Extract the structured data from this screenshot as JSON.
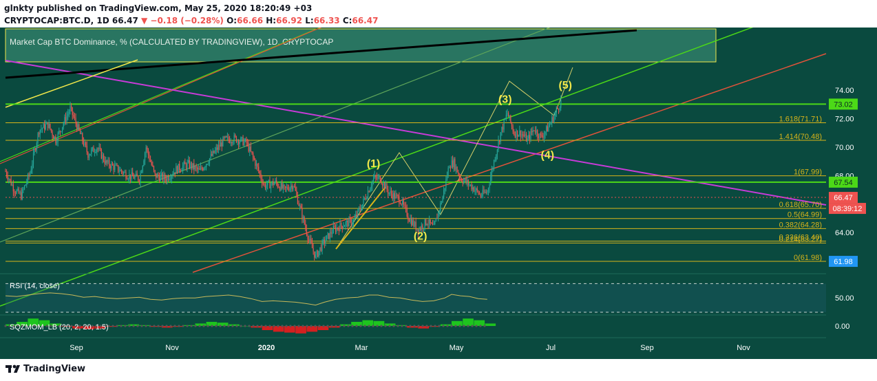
{
  "header": {
    "published_line": "glnkty published on TradingView.com, May 25, 2020 18:20:49 +03",
    "symbol": "CRYPTOCAP:BTC.D, 1D",
    "last": "66.47",
    "change": "▼ −0.18 (−0.28%)",
    "o_label": "O:",
    "o_value": "66.66",
    "h_label": "H:",
    "h_value": "66.92",
    "l_label": "L:",
    "l_value": "66.33",
    "c_label": "C:",
    "c_value": "66.47"
  },
  "legend_box": {
    "text": "Market Cap BTC Dominance, % (CALCULATED BY TRADINGVIEW), 1D, CRYPTOCAP"
  },
  "footer": {
    "brand": "TradingView"
  },
  "colors": {
    "background": "#0a4a3f",
    "up": "#26a69a",
    "down": "#ef5350",
    "fib": "#d9b51a",
    "green_line": "#4cd917",
    "red_line": "#e0533a",
    "magenta_line": "#c83bd8",
    "black_line": "#000000",
    "yellow_line": "#f2e84a",
    "wave_labels": "#f2e84a",
    "rsi_line": "#c8b95a",
    "last_price_badge": "#ef5350",
    "level_badge": "#4cd917",
    "low_badge": "#2196f3"
  },
  "chart_data": [
    {
      "type": "candlestick",
      "title": "Market Cap BTC Dominance, % (CALCULATED BY TRADINGVIEW), 1D, CRYPTOCAP",
      "x_ticks": [
        "Sep",
        "Nov",
        "2020",
        "Mar",
        "May",
        "Jul",
        "Sep",
        "Nov"
      ],
      "y_ticks": [
        "74.00",
        "72.00",
        "70.00",
        "68.00",
        "64.00"
      ],
      "ylim": [
        61.5,
        75.5
      ],
      "price_path": [
        [
          0,
          68.3
        ],
        [
          8,
          67.0
        ],
        [
          14,
          66.6
        ],
        [
          22,
          68.2
        ],
        [
          30,
          71.2
        ],
        [
          38,
          71.6
        ],
        [
          45,
          70.5
        ],
        [
          52,
          71.7
        ],
        [
          58,
          72.7
        ],
        [
          66,
          71.1
        ],
        [
          74,
          69.5
        ],
        [
          82,
          70.0
        ],
        [
          90,
          68.9
        ],
        [
          100,
          68.5
        ],
        [
          110,
          68.0
        ],
        [
          120,
          67.8
        ],
        [
          126,
          70.0
        ],
        [
          134,
          68.0
        ],
        [
          144,
          67.8
        ],
        [
          154,
          68.5
        ],
        [
          164,
          68.8
        ],
        [
          174,
          68.3
        ],
        [
          186,
          69.5
        ],
        [
          196,
          70.5
        ],
        [
          206,
          70.6
        ],
        [
          216,
          70.3
        ],
        [
          224,
          68.9
        ],
        [
          232,
          67.3
        ],
        [
          242,
          67.5
        ],
        [
          250,
          67.0
        ],
        [
          258,
          67.4
        ],
        [
          266,
          65.2
        ],
        [
          272,
          63.5
        ],
        [
          278,
          62.3
        ],
        [
          286,
          63.4
        ],
        [
          294,
          64.2
        ],
        [
          304,
          64.6
        ],
        [
          312,
          64.8
        ],
        [
          320,
          66.0
        ],
        [
          330,
          67.8
        ],
        [
          336,
          67.8
        ],
        [
          344,
          66.8
        ],
        [
          354,
          66.3
        ],
        [
          362,
          65.0
        ],
        [
          370,
          64.2
        ],
        [
          378,
          64.8
        ],
        [
          384,
          64.3
        ],
        [
          392,
          66.5
        ],
        [
          398,
          68.8
        ],
        [
          402,
          68.9
        ],
        [
          408,
          67.8
        ],
        [
          414,
          67.5
        ],
        [
          420,
          67.1
        ],
        [
          426,
          66.6
        ],
        [
          432,
          66.9
        ],
        [
          438,
          69.0
        ],
        [
          444,
          71.0
        ],
        [
          450,
          72.4
        ],
        [
          456,
          71.0
        ],
        [
          462,
          71.0
        ],
        [
          468,
          70.5
        ],
        [
          474,
          71.3
        ],
        [
          480,
          70.7
        ],
        [
          486,
          71.3
        ],
        [
          492,
          72.2
        ],
        [
          498,
          73.2
        ]
      ],
      "fib_levels": [
        {
          "label": "1.618(71.71)",
          "value": 71.71
        },
        {
          "label": "1.414(70.48)",
          "value": 70.48
        },
        {
          "label": "1(67.99)",
          "value": 67.99
        },
        {
          "label": "0.618(65.70)",
          "value": 65.7
        },
        {
          "label": "0.5(64.99)",
          "value": 64.99
        },
        {
          "label": "0.382(64.28)",
          "value": 64.28
        },
        {
          "label": "0.236(63.40)",
          "value": 63.4
        },
        {
          "label": "0.214(63.27)",
          "value": 63.27
        },
        {
          "label": "0(61.98)",
          "value": 61.98
        }
      ],
      "horizontal_levels": [
        {
          "value": 73.02,
          "label": "73.02"
        },
        {
          "value": 67.54,
          "label": "67.54"
        }
      ],
      "last_price": {
        "value": 66.47,
        "label": "66.47",
        "countdown": "08:39:12"
      },
      "low_marker": {
        "value": 61.98,
        "label": "61.98"
      },
      "wave_labels": [
        {
          "label": "(1)",
          "x": 330,
          "y": 68.6
        },
        {
          "label": "(2)",
          "x": 372,
          "y": 63.5
        },
        {
          "label": "(3)",
          "x": 448,
          "y": 73.1
        },
        {
          "label": "(4)",
          "x": 486,
          "y": 69.2
        },
        {
          "label": "(5)",
          "x": 502,
          "y": 74.1
        }
      ]
    },
    {
      "type": "line",
      "title": "RSI (14, close)",
      "y_ticks": [
        "50.00"
      ],
      "ylim": [
        30,
        80
      ],
      "values": [
        [
          0,
          53
        ],
        [
          10,
          52
        ],
        [
          20,
          54
        ],
        [
          30,
          56
        ],
        [
          40,
          57
        ],
        [
          50,
          56
        ],
        [
          60,
          54
        ],
        [
          70,
          51
        ],
        [
          80,
          52
        ],
        [
          90,
          50
        ],
        [
          100,
          49
        ],
        [
          110,
          50
        ],
        [
          120,
          51
        ],
        [
          130,
          48
        ],
        [
          140,
          47
        ],
        [
          150,
          49
        ],
        [
          160,
          50
        ],
        [
          170,
          50
        ],
        [
          180,
          52
        ],
        [
          190,
          53
        ],
        [
          200,
          54
        ],
        [
          210,
          52
        ],
        [
          220,
          49
        ],
        [
          230,
          45
        ],
        [
          240,
          46
        ],
        [
          250,
          45
        ],
        [
          260,
          44
        ],
        [
          270,
          42
        ],
        [
          278,
          40
        ],
        [
          286,
          44
        ],
        [
          296,
          48
        ],
        [
          306,
          50
        ],
        [
          316,
          51
        ],
        [
          326,
          54
        ],
        [
          334,
          54
        ],
        [
          344,
          51
        ],
        [
          354,
          50
        ],
        [
          364,
          47
        ],
        [
          374,
          45
        ],
        [
          384,
          46
        ],
        [
          394,
          50
        ],
        [
          400,
          55
        ],
        [
          408,
          53
        ],
        [
          416,
          52
        ],
        [
          424,
          49
        ],
        [
          432,
          48
        ]
      ],
      "levels": [
        70,
        30
      ]
    },
    {
      "type": "bar",
      "title": "SQZMOM_LB (20, 2, 20, 1.5)",
      "y_ticks": [
        "0.00"
      ],
      "ylim": [
        -1,
        1
      ],
      "values": [
        [
          0,
          0.2
        ],
        [
          10,
          0.5
        ],
        [
          20,
          0.9
        ],
        [
          30,
          0.7
        ],
        [
          40,
          0.3
        ],
        [
          50,
          -0.1
        ],
        [
          60,
          -0.3
        ],
        [
          70,
          -0.4
        ],
        [
          80,
          -0.3
        ],
        [
          90,
          -0.1
        ],
        [
          100,
          0.1
        ],
        [
          110,
          0.2
        ],
        [
          120,
          0.1
        ],
        [
          130,
          -0.1
        ],
        [
          140,
          -0.2
        ],
        [
          150,
          -0.1
        ],
        [
          160,
          0.1
        ],
        [
          170,
          0.3
        ],
        [
          180,
          0.5
        ],
        [
          190,
          0.4
        ],
        [
          200,
          0.2
        ],
        [
          210,
          0.0
        ],
        [
          220,
          -0.2
        ],
        [
          230,
          -0.5
        ],
        [
          240,
          -0.7
        ],
        [
          250,
          -0.8
        ],
        [
          260,
          -0.9
        ],
        [
          270,
          -0.7
        ],
        [
          280,
          -0.5
        ],
        [
          290,
          -0.2
        ],
        [
          300,
          0.2
        ],
        [
          310,
          0.5
        ],
        [
          320,
          0.7
        ],
        [
          330,
          0.6
        ],
        [
          340,
          0.3
        ],
        [
          350,
          0.1
        ],
        [
          360,
          -0.2
        ],
        [
          370,
          -0.3
        ],
        [
          380,
          -0.1
        ],
        [
          390,
          0.2
        ],
        [
          400,
          0.6
        ],
        [
          410,
          0.9
        ],
        [
          420,
          0.7
        ],
        [
          430,
          0.3
        ]
      ]
    }
  ]
}
